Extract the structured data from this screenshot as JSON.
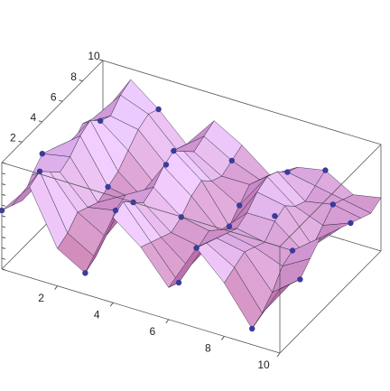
{
  "chart_data": {
    "type": "surface3d",
    "xlim": [
      0,
      10
    ],
    "ylim": [
      0,
      10
    ],
    "zlim": [
      0,
      1
    ],
    "xticks": [
      2,
      4,
      6,
      8,
      10
    ],
    "yticks": [
      2,
      4,
      6,
      8,
      10
    ],
    "zticks": [
      0,
      0.1,
      0.2,
      0.3,
      0.4,
      0.5,
      0.6,
      0.7,
      0.8,
      0.9,
      1
    ],
    "surface_color": "#c9a6ee",
    "low_color": "#a0204a",
    "mesh_color": "#1a1a2a",
    "point_color": "#3b3b9c",
    "box_color": "#555555",
    "grid_x": [
      0,
      1,
      2,
      3,
      4,
      5,
      6,
      7,
      8,
      9,
      10
    ],
    "grid_y": [
      0,
      1,
      2,
      3,
      4,
      5,
      6,
      7,
      8,
      9,
      10
    ],
    "z": [
      [
        0.55,
        0.85,
        0.35,
        0.2,
        0.8,
        0.6,
        0.3,
        0.75,
        0.5,
        0.15,
        0.6
      ],
      [
        0.5,
        0.9,
        0.4,
        0.25,
        0.85,
        0.55,
        0.25,
        0.7,
        0.55,
        0.2,
        0.55
      ],
      [
        0.45,
        0.8,
        0.5,
        0.35,
        0.75,
        0.5,
        0.3,
        0.65,
        0.6,
        0.3,
        0.5
      ],
      [
        0.6,
        0.7,
        0.45,
        0.5,
        0.65,
        0.45,
        0.4,
        0.6,
        0.55,
        0.45,
        0.6
      ],
      [
        0.7,
        0.75,
        0.4,
        0.55,
        0.7,
        0.5,
        0.45,
        0.55,
        0.5,
        0.5,
        0.7
      ],
      [
        0.65,
        0.85,
        0.45,
        0.4,
        0.8,
        0.6,
        0.35,
        0.6,
        0.6,
        0.4,
        0.65
      ],
      [
        0.55,
        0.9,
        0.5,
        0.3,
        0.85,
        0.65,
        0.3,
        0.7,
        0.65,
        0.35,
        0.6
      ],
      [
        0.5,
        0.8,
        0.6,
        0.35,
        0.75,
        0.55,
        0.4,
        0.75,
        0.55,
        0.45,
        0.55
      ],
      [
        0.6,
        0.75,
        0.7,
        0.45,
        0.65,
        0.5,
        0.5,
        0.7,
        0.5,
        0.55,
        0.5
      ],
      [
        0.55,
        0.85,
        0.75,
        0.5,
        0.7,
        0.55,
        0.45,
        0.6,
        0.55,
        0.5,
        0.45
      ],
      [
        0.5,
        0.9,
        0.7,
        0.45,
        0.75,
        0.6,
        0.4,
        0.55,
        0.6,
        0.45,
        0.5
      ]
    ],
    "points": {
      "x": [
        0,
        1,
        3,
        4,
        6,
        7,
        9,
        10,
        0,
        2,
        3,
        5,
        6,
        8,
        9,
        1,
        3,
        4,
        6,
        7,
        9,
        10,
        2,
        5,
        8
      ],
      "y": [
        0,
        1,
        0,
        2,
        1,
        0,
        0,
        2,
        4,
        5,
        3,
        4,
        6,
        5,
        4,
        7,
        8,
        6,
        7,
        9,
        8,
        7,
        10,
        9,
        10
      ],
      "z": [
        0.55,
        0.9,
        0.2,
        0.75,
        0.25,
        0.75,
        0.15,
        0.5,
        0.7,
        0.45,
        0.5,
        0.5,
        0.3,
        0.65,
        0.5,
        0.8,
        0.45,
        0.85,
        0.4,
        0.6,
        0.55,
        0.55,
        0.7,
        0.55,
        0.6
      ]
    }
  }
}
